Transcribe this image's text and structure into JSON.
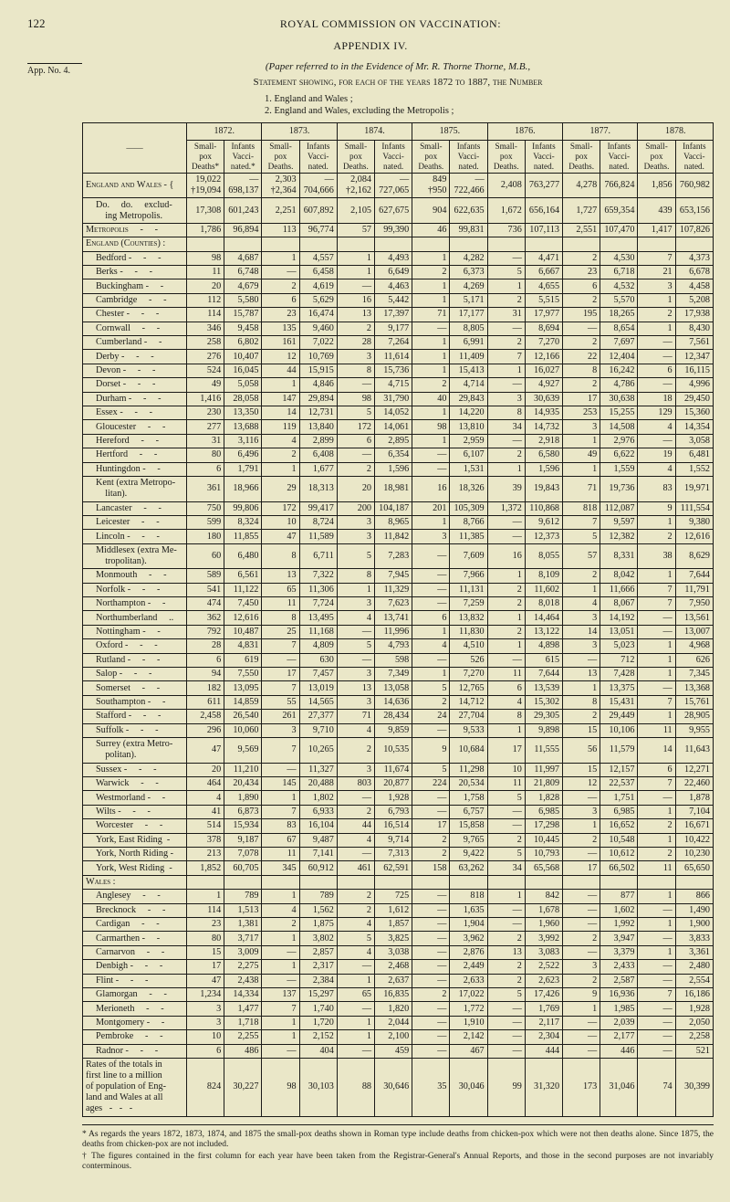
{
  "page_number": "122",
  "running_head": "ROYAL COMMISSION ON VACCINATION:",
  "appendix": "APPENDIX IV.",
  "app_no": "App. No. 4.",
  "paper_ref": "(Paper referred to in the Evidence of Mr. R. Thorne Thorne, M.B.,",
  "statement": "Statement showing, for each of the years 1872 to 1887, the Number",
  "subhead_1": "1. England and Wales ;",
  "subhead_2": "2. England and Wales, excluding the Metropolis ;",
  "years": [
    "1872.",
    "1873.",
    "1874.",
    "1875.",
    "1876.",
    "1877.",
    "1878."
  ],
  "col_pair": [
    "Small-pox Deaths.",
    "Infants Vacci-nated."
  ],
  "col_pair_first": [
    "Small-pox Deaths*",
    "Infants Vacci-nated.*"
  ],
  "rows": [
    {
      "cls": "sec",
      "label": "England and Wales - {",
      "v": [
        "19,022\n†19,094",
        "—\n698,137",
        "2,303\n†2,364",
        "—\n704,666",
        "2,084\n†2,162",
        "—\n727,065",
        "849\n†950",
        "—\n722,466",
        "2,408",
        "763,277",
        "4,278",
        "766,824",
        "1,856",
        "760,982"
      ]
    },
    {
      "cls": "sub",
      "label": "Do.     do.     exclud-\n    ing Metropolis.",
      "v": [
        "17,308",
        "601,243",
        "2,251",
        "607,892",
        "2,105",
        "627,675",
        "904",
        "622,635",
        "1,672",
        "656,164",
        "1,727",
        "659,354",
        "439",
        "653,156"
      ]
    },
    {
      "cls": "sec gap",
      "label": "Metropolis     -     -",
      "v": [
        "1,786",
        "96,894",
        "113",
        "96,774",
        "57",
        "99,390",
        "46",
        "99,831",
        "736",
        "107,113",
        "2,551",
        "107,470",
        "1,417",
        "107,826"
      ]
    },
    {
      "cls": "sec gap",
      "label": "England (Counties) :",
      "v": [
        "",
        "",
        "",
        "",
        "",
        "",
        "",
        "",
        "",
        "",
        "",
        "",
        "",
        ""
      ]
    },
    {
      "cls": "sub",
      "label": "Bedford -     -     -",
      "v": [
        "98",
        "4,687",
        "1",
        "4,557",
        "1",
        "4,493",
        "1",
        "4,282",
        "—",
        "4,471",
        "2",
        "4,530",
        "7",
        "4,373"
      ]
    },
    {
      "cls": "sub",
      "label": "Berks -     -     -",
      "v": [
        "11",
        "6,748",
        "—",
        "6,458",
        "1",
        "6,649",
        "2",
        "6,373",
        "5",
        "6,667",
        "23",
        "6,718",
        "21",
        "6,678"
      ]
    },
    {
      "cls": "sub",
      "label": "Buckingham -     -",
      "v": [
        "20",
        "4,679",
        "2",
        "4,619",
        "—",
        "4,463",
        "1",
        "4,269",
        "1",
        "4,655",
        "6",
        "4,532",
        "3",
        "4,458"
      ]
    },
    {
      "cls": "sub",
      "label": "Cambridge     -     -",
      "v": [
        "112",
        "5,580",
        "6",
        "5,629",
        "16",
        "5,442",
        "1",
        "5,171",
        "2",
        "5,515",
        "2",
        "5,570",
        "1",
        "5,208"
      ]
    },
    {
      "cls": "sub",
      "label": "Chester -     -     -",
      "v": [
        "114",
        "15,787",
        "23",
        "16,474",
        "13",
        "17,397",
        "71",
        "17,177",
        "31",
        "17,977",
        "195",
        "18,265",
        "2",
        "17,938"
      ]
    },
    {
      "cls": "sub",
      "label": "Cornwall     -     -",
      "v": [
        "346",
        "9,458",
        "135",
        "9,460",
        "2",
        "9,177",
        "—",
        "8,805",
        "—",
        "8,694",
        "—",
        "8,654",
        "1",
        "8,430"
      ]
    },
    {
      "cls": "sub",
      "label": "Cumberland -     -",
      "v": [
        "258",
        "6,802",
        "161",
        "7,022",
        "28",
        "7,264",
        "1",
        "6,991",
        "2",
        "7,270",
        "2",
        "7,697",
        "—",
        "7,561"
      ]
    },
    {
      "cls": "sub",
      "label": "Derby -     -     -",
      "v": [
        "276",
        "10,407",
        "12",
        "10,769",
        "3",
        "11,614",
        "1",
        "11,409",
        "7",
        "12,166",
        "22",
        "12,404",
        "—",
        "12,347"
      ]
    },
    {
      "cls": "sub",
      "label": "Devon -     -     -",
      "v": [
        "524",
        "16,045",
        "44",
        "15,915",
        "8",
        "15,736",
        "1",
        "15,413",
        "1",
        "16,027",
        "8",
        "16,242",
        "6",
        "16,115"
      ]
    },
    {
      "cls": "sub",
      "label": "Dorset -     -     -",
      "v": [
        "49",
        "5,058",
        "1",
        "4,846",
        "—",
        "4,715",
        "2",
        "4,714",
        "—",
        "4,927",
        "2",
        "4,786",
        "—",
        "4,996"
      ]
    },
    {
      "cls": "sub",
      "label": "Durham -     -     -",
      "v": [
        "1,416",
        "28,058",
        "147",
        "29,894",
        "98",
        "31,790",
        "40",
        "29,843",
        "3",
        "30,639",
        "17",
        "30,638",
        "18",
        "29,450"
      ]
    },
    {
      "cls": "sub",
      "label": "Essex -     -     -",
      "v": [
        "230",
        "13,350",
        "14",
        "12,731",
        "5",
        "14,052",
        "1",
        "14,220",
        "8",
        "14,935",
        "253",
        "15,255",
        "129",
        "15,360"
      ]
    },
    {
      "cls": "sub",
      "label": "Gloucester     -     -",
      "v": [
        "277",
        "13,688",
        "119",
        "13,840",
        "172",
        "14,061",
        "98",
        "13,810",
        "34",
        "14,732",
        "3",
        "14,508",
        "4",
        "14,354"
      ]
    },
    {
      "cls": "sub",
      "label": "Hereford     -     -",
      "v": [
        "31",
        "3,116",
        "4",
        "2,899",
        "6",
        "2,895",
        "1",
        "2,959",
        "—",
        "2,918",
        "1",
        "2,976",
        "—",
        "3,058"
      ]
    },
    {
      "cls": "sub",
      "label": "Hertford     -     -",
      "v": [
        "80",
        "6,496",
        "2",
        "6,408",
        "—",
        "6,354",
        "—",
        "6,107",
        "2",
        "6,580",
        "49",
        "6,622",
        "19",
        "6,481"
      ]
    },
    {
      "cls": "sub",
      "label": "Huntingdon -     -",
      "v": [
        "6",
        "1,791",
        "1",
        "1,677",
        "2",
        "1,596",
        "—",
        "1,531",
        "1",
        "1,596",
        "1",
        "1,559",
        "4",
        "1,552"
      ]
    },
    {
      "cls": "sub",
      "label": "Kent (extra Metropo-\n    litan).",
      "v": [
        "361",
        "18,966",
        "29",
        "18,313",
        "20",
        "18,981",
        "16",
        "18,326",
        "39",
        "19,843",
        "71",
        "19,736",
        "83",
        "19,971"
      ]
    },
    {
      "cls": "sub",
      "label": "Lancaster     -     -",
      "v": [
        "750",
        "99,806",
        "172",
        "99,417",
        "200",
        "104,187",
        "201",
        "105,309",
        "1,372",
        "110,868",
        "818",
        "112,087",
        "9",
        "111,554"
      ]
    },
    {
      "cls": "sub",
      "label": "Leicester     -     -",
      "v": [
        "599",
        "8,324",
        "10",
        "8,724",
        "3",
        "8,965",
        "1",
        "8,766",
        "—",
        "9,612",
        "7",
        "9,597",
        "1",
        "9,380"
      ]
    },
    {
      "cls": "sub",
      "label": "Lincoln -     -     -",
      "v": [
        "180",
        "11,855",
        "47",
        "11,589",
        "3",
        "11,842",
        "3",
        "11,385",
        "—",
        "12,373",
        "5",
        "12,382",
        "2",
        "12,616"
      ]
    },
    {
      "cls": "sub",
      "label": "Middlesex (extra Me-\n    tropolitan).",
      "v": [
        "60",
        "6,480",
        "8",
        "6,711",
        "5",
        "7,283",
        "—",
        "7,609",
        "16",
        "8,055",
        "57",
        "8,331",
        "38",
        "8,629"
      ]
    },
    {
      "cls": "sub",
      "label": "Monmouth     -     -",
      "v": [
        "589",
        "6,561",
        "13",
        "7,322",
        "8",
        "7,945",
        "—",
        "7,966",
        "1",
        "8,109",
        "2",
        "8,042",
        "1",
        "7,644"
      ]
    },
    {
      "cls": "sub",
      "label": "Norfolk -     -     -",
      "v": [
        "541",
        "11,122",
        "65",
        "11,306",
        "1",
        "11,329",
        "—",
        "11,131",
        "2",
        "11,602",
        "1",
        "11,666",
        "7",
        "11,791"
      ]
    },
    {
      "cls": "sub",
      "label": "Northampton -     -",
      "v": [
        "474",
        "7,450",
        "11",
        "7,724",
        "3",
        "7,623",
        "—",
        "7,259",
        "2",
        "8,018",
        "4",
        "8,067",
        "7",
        "7,950"
      ]
    },
    {
      "cls": "sub",
      "label": "Northumberland     ..",
      "v": [
        "362",
        "12,616",
        "8",
        "13,495",
        "4",
        "13,741",
        "6",
        "13,832",
        "1",
        "14,464",
        "3",
        "14,192",
        "—",
        "13,561"
      ]
    },
    {
      "cls": "sub",
      "label": "Nottingham -     -",
      "v": [
        "792",
        "10,487",
        "25",
        "11,168",
        "—",
        "11,996",
        "1",
        "11,830",
        "2",
        "13,122",
        "14",
        "13,051",
        "—",
        "13,007"
      ]
    },
    {
      "cls": "sub",
      "label": "Oxford -     -     -",
      "v": [
        "28",
        "4,831",
        "7",
        "4,809",
        "5",
        "4,793",
        "4",
        "4,510",
        "1",
        "4,898",
        "3",
        "5,023",
        "1",
        "4,968"
      ]
    },
    {
      "cls": "sub",
      "label": "Rutland -     -     -",
      "v": [
        "6",
        "619",
        "—",
        "630",
        "—",
        "598",
        "—",
        "526",
        "—",
        "615",
        "—",
        "712",
        "1",
        "626"
      ]
    },
    {
      "cls": "sub",
      "label": "Salop -     -     -",
      "v": [
        "94",
        "7,550",
        "17",
        "7,457",
        "3",
        "7,349",
        "1",
        "7,270",
        "11",
        "7,644",
        "13",
        "7,428",
        "1",
        "7,345"
      ]
    },
    {
      "cls": "sub",
      "label": "Somerset     -     -",
      "v": [
        "182",
        "13,095",
        "7",
        "13,019",
        "13",
        "13,058",
        "5",
        "12,765",
        "6",
        "13,539",
        "1",
        "13,375",
        "—",
        "13,368"
      ]
    },
    {
      "cls": "sub",
      "label": "Southampton -     -",
      "v": [
        "611",
        "14,859",
        "55",
        "14,565",
        "3",
        "14,636",
        "2",
        "14,712",
        "4",
        "15,302",
        "8",
        "15,431",
        "7",
        "15,761"
      ]
    },
    {
      "cls": "sub",
      "label": "Stafford -     -     -",
      "v": [
        "2,458",
        "26,540",
        "261",
        "27,377",
        "71",
        "28,434",
        "24",
        "27,704",
        "8",
        "29,305",
        "2",
        "29,449",
        "1",
        "28,905"
      ]
    },
    {
      "cls": "sub",
      "label": "Suffolk -     -     -",
      "v": [
        "296",
        "10,060",
        "3",
        "9,710",
        "4",
        "9,859",
        "—",
        "9,533",
        "1",
        "9,898",
        "15",
        "10,106",
        "11",
        "9,955"
      ]
    },
    {
      "cls": "sub",
      "label": "Surrey (extra Metro-\n    politan).",
      "v": [
        "47",
        "9,569",
        "7",
        "10,265",
        "2",
        "10,535",
        "9",
        "10,684",
        "17",
        "11,555",
        "56",
        "11,579",
        "14",
        "11,643"
      ]
    },
    {
      "cls": "sub",
      "label": "Sussex -     -     -",
      "v": [
        "20",
        "11,210",
        "—",
        "11,327",
        "3",
        "11,674",
        "5",
        "11,298",
        "10",
        "11,997",
        "15",
        "12,157",
        "6",
        "12,271"
      ]
    },
    {
      "cls": "sub",
      "label": "Warwick     -     -",
      "v": [
        "464",
        "20,434",
        "145",
        "20,488",
        "803",
        "20,877",
        "224",
        "20,534",
        "11",
        "21,809",
        "12",
        "22,537",
        "7",
        "22,460"
      ]
    },
    {
      "cls": "sub",
      "label": "Westmorland -     -",
      "v": [
        "4",
        "1,890",
        "1",
        "1,802",
        "—",
        "1,928",
        "—",
        "1,758",
        "5",
        "1,828",
        "—",
        "1,751",
        "—",
        "1,878"
      ]
    },
    {
      "cls": "sub",
      "label": "Wilts -     -     -",
      "v": [
        "41",
        "6,873",
        "7",
        "6,933",
        "2",
        "6,793",
        "—",
        "6,757",
        "—",
        "6,985",
        "3",
        "6,985",
        "1",
        "7,104"
      ]
    },
    {
      "cls": "sub",
      "label": "Worcester     -     -",
      "v": [
        "514",
        "15,934",
        "83",
        "16,104",
        "44",
        "16,514",
        "17",
        "15,858",
        "—",
        "17,298",
        "1",
        "16,652",
        "2",
        "16,671"
      ]
    },
    {
      "cls": "sub",
      "label": "York, East Riding  -",
      "v": [
        "378",
        "9,187",
        "67",
        "9,487",
        "4",
        "9,714",
        "2",
        "9,765",
        "2",
        "10,445",
        "2",
        "10,548",
        "1",
        "10,422"
      ]
    },
    {
      "cls": "sub",
      "label": "York, North Riding -",
      "v": [
        "213",
        "7,078",
        "11",
        "7,141",
        "—",
        "7,313",
        "2",
        "9,422",
        "5",
        "10,793",
        "—",
        "10,612",
        "2",
        "10,230"
      ]
    },
    {
      "cls": "sub",
      "label": "York, West Riding  -",
      "v": [
        "1,852",
        "60,705",
        "345",
        "60,912",
        "461",
        "62,591",
        "158",
        "63,262",
        "34",
        "65,568",
        "17",
        "66,502",
        "11",
        "65,650"
      ]
    },
    {
      "cls": "sec gap",
      "label": "Wales :",
      "v": [
        "",
        "",
        "",
        "",
        "",
        "",
        "",
        "",
        "",
        "",
        "",
        "",
        "",
        ""
      ]
    },
    {
      "cls": "sub",
      "label": "Anglesey     -     -",
      "v": [
        "1",
        "789",
        "1",
        "789",
        "2",
        "725",
        "—",
        "818",
        "1",
        "842",
        "—",
        "877",
        "1",
        "866"
      ]
    },
    {
      "cls": "sub",
      "label": "Brecknock     -     -",
      "v": [
        "114",
        "1,513",
        "4",
        "1,562",
        "2",
        "1,612",
        "—",
        "1,635",
        "—",
        "1,678",
        "—",
        "1,602",
        "—",
        "1,490"
      ]
    },
    {
      "cls": "sub",
      "label": "Cardigan     -     -",
      "v": [
        "23",
        "1,381",
        "2",
        "1,875",
        "4",
        "1,857",
        "—",
        "1,904",
        "—",
        "1,960",
        "—",
        "1,992",
        "1",
        "1,900"
      ]
    },
    {
      "cls": "sub",
      "label": "Carmarthen -     -",
      "v": [
        "80",
        "3,717",
        "1",
        "3,802",
        "5",
        "3,825",
        "—",
        "3,962",
        "2",
        "3,992",
        "2",
        "3,947",
        "—",
        "3,833"
      ]
    },
    {
      "cls": "sub",
      "label": "Carnarvon     -     -",
      "v": [
        "15",
        "3,009",
        "—",
        "2,857",
        "4",
        "3,038",
        "—",
        "2,876",
        "13",
        "3,083",
        "—",
        "3,379",
        "1",
        "3,361"
      ]
    },
    {
      "cls": "sub",
      "label": "Denbigh -     -     -",
      "v": [
        "17",
        "2,275",
        "1",
        "2,317",
        "—",
        "2,468",
        "—",
        "2,449",
        "2",
        "2,522",
        "3",
        "2,433",
        "—",
        "2,480"
      ]
    },
    {
      "cls": "sub",
      "label": "Flint -     -     -",
      "v": [
        "47",
        "2,438",
        "—",
        "2,384",
        "1",
        "2,637",
        "—",
        "2,633",
        "2",
        "2,623",
        "2",
        "2,587",
        "—",
        "2,554"
      ]
    },
    {
      "cls": "sub",
      "label": "Glamorgan     -     -",
      "v": [
        "1,234",
        "14,334",
        "137",
        "15,297",
        "65",
        "16,835",
        "2",
        "17,022",
        "5",
        "17,426",
        "9",
        "16,936",
        "7",
        "16,186"
      ]
    },
    {
      "cls": "sub",
      "label": "Merioneth     -     -",
      "v": [
        "3",
        "1,477",
        "7",
        "1,740",
        "—",
        "1,820",
        "—",
        "1,772",
        "—",
        "1,769",
        "1",
        "1,985",
        "—",
        "1,928"
      ]
    },
    {
      "cls": "sub",
      "label": "Montgomery -     -",
      "v": [
        "3",
        "1,718",
        "1",
        "1,720",
        "1",
        "2,044",
        "—",
        "1,910",
        "—",
        "2,117",
        "—",
        "2,039",
        "—",
        "2,050"
      ]
    },
    {
      "cls": "sub",
      "label": "Pembroke     -     -",
      "v": [
        "10",
        "2,255",
        "1",
        "2,152",
        "1",
        "2,100",
        "—",
        "2,142",
        "—",
        "2,304",
        "—",
        "2,177",
        "—",
        "2,258"
      ]
    },
    {
      "cls": "sub",
      "label": "Radnor -     -     -",
      "v": [
        "6",
        "486",
        "—",
        "404",
        "—",
        "459",
        "—",
        "467",
        "—",
        "444",
        "—",
        "446",
        "—",
        "521"
      ]
    },
    {
      "cls": "gap",
      "label": "Rates of the totals in\nfirst line to a million\nof population of Eng-\nland and Wales at all\nages   -   -   -",
      "v": [
        "824",
        "30,227",
        "98",
        "30,103",
        "88",
        "30,646",
        "35",
        "30,046",
        "99",
        "31,320",
        "173",
        "31,046",
        "74",
        "30,399"
      ]
    }
  ],
  "footnotes": [
    "* As regards the years 1872, 1873, 1874, and 1875 the small-pox deaths shown in Roman type include deaths from chicken-pox which were not then deaths alone. Since 1875, the deaths from chicken-pox are not included.",
    "† The figures contained in the first column for each year have been taken from the Registrar-General's Annual Reports, and those in the second purposes are not invariably conterminous."
  ]
}
